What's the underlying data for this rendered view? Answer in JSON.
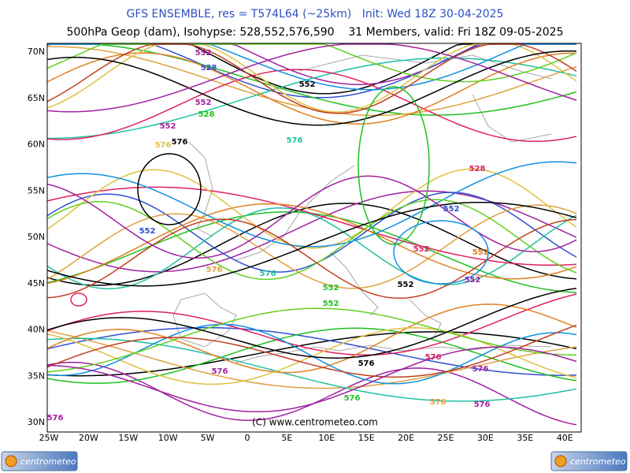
{
  "header": {
    "title": "GFS ENSEMBLE, res = T574L64 (~25km)   Init: Wed 18Z 30-04-2025",
    "subtitle": "500hPa Geop (dam), Isohypse: 528,552,576,590    31 Members, valid: Fri 18Z 09-05-2025"
  },
  "map": {
    "lat_labels": [
      "70N",
      "65N",
      "60N",
      "55N",
      "50N",
      "45N",
      "40N",
      "35N",
      "30N"
    ],
    "lon_labels": [
      "25W",
      "20W",
      "15W",
      "10W",
      "5W",
      "0",
      "5E",
      "10E",
      "15E",
      "20E",
      "25E",
      "30E",
      "35E",
      "40E"
    ],
    "copyright": "(C) www.centrometeo.com",
    "contour_labels": [
      {
        "text": "552",
        "color": "#000000"
      },
      {
        "text": "552",
        "color": "#a020a0"
      },
      {
        "text": "528",
        "color": "#3050d0"
      },
      {
        "text": "552",
        "color": "#a020a0"
      },
      {
        "text": "528",
        "color": "#20c020"
      },
      {
        "text": "576",
        "color": "#000000"
      },
      {
        "text": "576",
        "color": "#e0c040"
      },
      {
        "text": "576",
        "color": "#20c0a0"
      },
      {
        "text": "552",
        "color": "#3050d0"
      },
      {
        "text": "552",
        "color": "#a020a0"
      },
      {
        "text": "576",
        "color": "#e0a040"
      },
      {
        "text": "576",
        "color": "#20c0a0"
      },
      {
        "text": "552",
        "color": "#20c020"
      },
      {
        "text": "552",
        "color": "#20c020"
      },
      {
        "text": "552",
        "color": "#000000"
      },
      {
        "text": "552",
        "color": "#e02060"
      },
      {
        "text": "552",
        "color": "#e08020"
      },
      {
        "text": "552",
        "color": "#a020a0"
      },
      {
        "text": "528",
        "color": "#e02060"
      },
      {
        "text": "576",
        "color": "#a020a0"
      },
      {
        "text": "576",
        "color": "#e02060"
      },
      {
        "text": "576",
        "color": "#000000"
      },
      {
        "text": "576",
        "color": "#a020a0"
      },
      {
        "text": "576",
        "color": "#20c020"
      },
      {
        "text": "576",
        "color": "#e0a040"
      },
      {
        "text": "576",
        "color": "#a020a0"
      },
      {
        "text": "552",
        "color": "#3050d0"
      },
      {
        "text": "576",
        "color": "#a020a0"
      }
    ]
  },
  "logos": {
    "left": "centrometeo",
    "right": "centrometeo"
  }
}
